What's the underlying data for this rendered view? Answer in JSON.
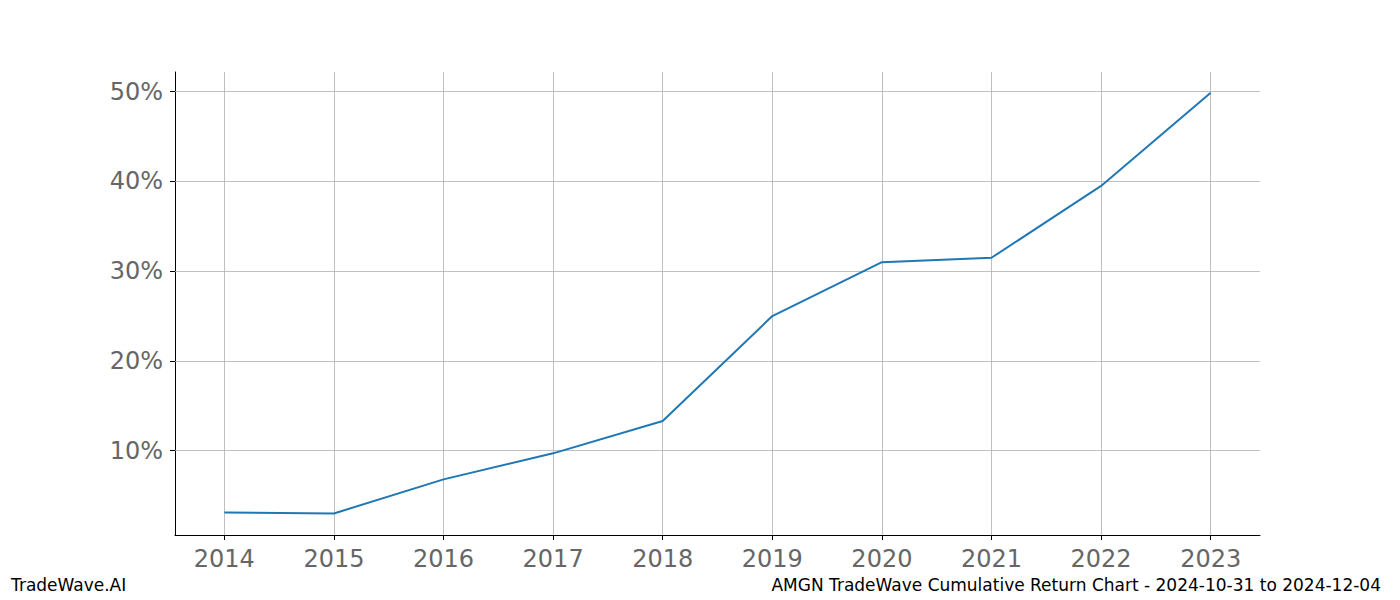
{
  "chart_data": {
    "type": "line",
    "title": "AMGN TradeWave Cumulative Return Chart - 2024-10-31 to 2024-12-04",
    "annotations": [
      "TradeWave.AI"
    ],
    "x": [
      2014,
      2015,
      2016,
      2017,
      2018,
      2019,
      2020,
      2021,
      2022,
      2023
    ],
    "values": [
      3.1,
      3.0,
      6.8,
      9.7,
      13.3,
      25.0,
      31.0,
      31.5,
      39.5,
      49.9
    ],
    "color": "#1f77b4",
    "xlim": [
      2013.55,
      2023.45
    ],
    "xticks": [
      2014,
      2015,
      2016,
      2017,
      2018,
      2019,
      2020,
      2021,
      2022,
      2023
    ],
    "ylim": [
      0.6,
      52.2
    ],
    "yticks": [
      {
        "value": 10,
        "label": "10%"
      },
      {
        "value": 20,
        "label": "20%"
      },
      {
        "value": 30,
        "label": "30%"
      },
      {
        "value": 40,
        "label": "40%"
      },
      {
        "value": 50,
        "label": "50%"
      }
    ],
    "grid": true
  }
}
